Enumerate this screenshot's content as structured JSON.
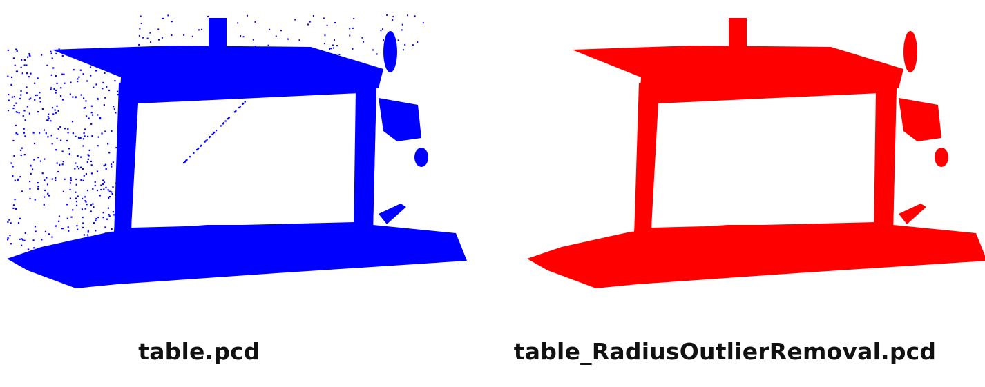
{
  "panels": [
    {
      "caption": "table.pcd",
      "cloud_color": "#0000ff",
      "has_outliers": true
    },
    {
      "caption": "table_RadiusOutlierRemoval.pcd",
      "cloud_color": "#ff0000",
      "has_outliers": false
    }
  ]
}
